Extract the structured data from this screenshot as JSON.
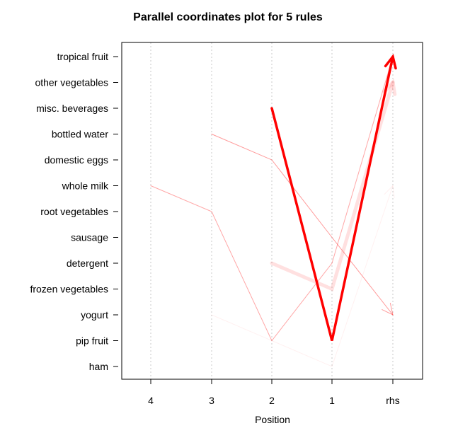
{
  "chart_data": {
    "type": "line",
    "title": "Parallel coordinates plot for 5 rules",
    "xlabel": "Position",
    "ylabel": "",
    "x_categories": [
      "4",
      "3",
      "2",
      "1",
      "rhs"
    ],
    "y_categories": [
      "tropical fruit",
      "other vegetables",
      "misc. beverages",
      "bottled water",
      "domestic eggs",
      "whole milk",
      "root vegetables",
      "sausage",
      "detergent",
      "frozen vegetables",
      "yogurt",
      "pip fruit",
      "ham"
    ],
    "grid": true,
    "line_color": "#ff0000",
    "series": [
      {
        "points": [
          [
            "2",
            "detergent"
          ],
          [
            "1",
            "frozen vegetables"
          ],
          [
            "rhs",
            "other vegetables"
          ]
        ],
        "opacity": 0.12,
        "width": 5
      },
      {
        "points": [
          [
            "3",
            "yogurt"
          ],
          [
            "2",
            "pip fruit"
          ],
          [
            "1",
            "ham"
          ],
          [
            "rhs",
            "whole milk"
          ]
        ],
        "opacity": 0.06,
        "width": 1
      },
      {
        "points": [
          [
            "4",
            "whole milk"
          ],
          [
            "3",
            "root vegetables"
          ],
          [
            "2",
            "pip fruit"
          ],
          [
            "1",
            "detergent"
          ],
          [
            "rhs",
            "tropical fruit"
          ]
        ],
        "opacity": 0.35,
        "width": 1
      },
      {
        "points": [
          [
            "3",
            "bottled water"
          ],
          [
            "2",
            "domestic eggs"
          ],
          [
            "1",
            "sausage"
          ],
          [
            "rhs",
            "yogurt"
          ]
        ],
        "opacity": 0.4,
        "width": 1
      },
      {
        "points": [
          [
            "2",
            "misc. beverages"
          ],
          [
            "1",
            "pip fruit"
          ],
          [
            "rhs",
            "tropical fruit"
          ]
        ],
        "opacity": 1.0,
        "width": 3.5
      }
    ]
  }
}
